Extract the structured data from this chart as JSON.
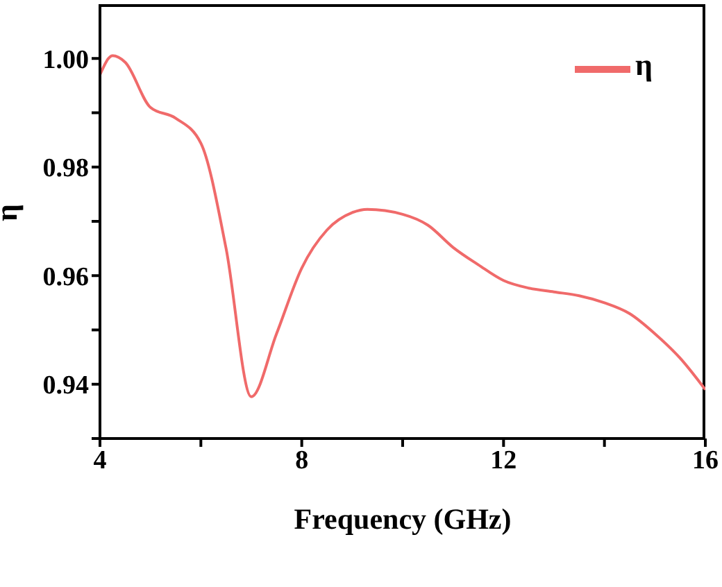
{
  "chart_data": {
    "type": "line",
    "xlabel": "Frequency (GHz)",
    "ylabel": "η",
    "x": [
      4,
      4.25,
      4.5,
      5,
      5.5,
      6,
      6.5,
      7,
      7.5,
      8,
      8.5,
      9,
      9.3,
      10,
      10.5,
      11,
      11.5,
      12,
      12.5,
      13,
      13.5,
      14,
      14.5,
      15,
      15.5,
      16
    ],
    "series": [
      {
        "name": "η",
        "color": "#f06a6a",
        "values": [
          0.997,
          1.0005,
          0.9993,
          0.991,
          0.989,
          0.9844,
          0.965,
          0.9377,
          0.9493,
          0.9614,
          0.9684,
          0.9716,
          0.9722,
          0.9713,
          0.9693,
          0.9652,
          0.962,
          0.9591,
          0.9577,
          0.957,
          0.9563,
          0.955,
          0.953,
          0.9493,
          0.9448,
          0.939
        ]
      }
    ],
    "xlim": [
      4,
      16
    ],
    "xticks": [
      4,
      {
        "value": 6,
        "label": null
      },
      8,
      {
        "value": 10,
        "label": null
      },
      12,
      {
        "value": 14,
        "label": null
      },
      16
    ],
    "ylim": [
      0.93,
      1.01
    ],
    "yticks": [
      {
        "value": 0.93,
        "label": null
      },
      {
        "value": 0.94,
        "label": "0.94"
      },
      {
        "value": 0.95,
        "label": null
      },
      {
        "value": 0.96,
        "label": "0.96"
      },
      {
        "value": 0.97,
        "label": null
      },
      {
        "value": 0.98,
        "label": "0.98"
      },
      {
        "value": 0.99,
        "label": null
      },
      {
        "value": 1.0,
        "label": "1.00"
      }
    ],
    "legend": "top right",
    "marker": "none",
    "line_style": "solid",
    "grid": false
  }
}
